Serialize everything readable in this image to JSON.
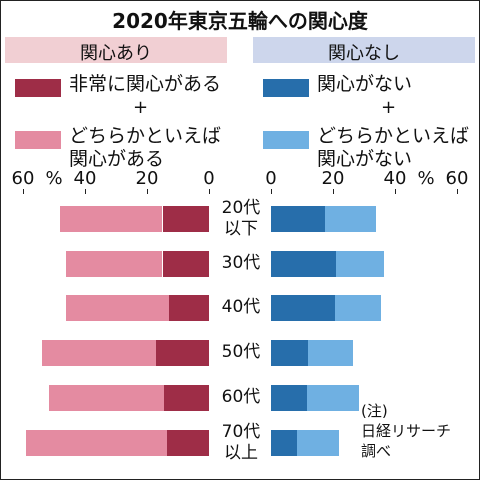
{
  "chart_data": {
    "type": "diverging_bar",
    "title": "2020年東京五輪への関心度",
    "groups": [
      {
        "title": "関心あり",
        "side": "left",
        "color": "#f1cfd3"
      },
      {
        "title": "関心なし",
        "side": "right",
        "color": "#cdd6ec"
      }
    ],
    "legend_joiner": "+",
    "categories": [
      "20代\n以下",
      "30代",
      "40代",
      "50代",
      "60代",
      "70代\n以上"
    ],
    "series": [
      {
        "name": "非常に関心がある",
        "side": "left",
        "color": "#9e2d47",
        "values": [
          15,
          15,
          13,
          17,
          14.5,
          13.5
        ]
      },
      {
        "name": "どちらかといえば\n関心がある",
        "side": "left",
        "color": "#e48ba1",
        "values": [
          33,
          31,
          33,
          37,
          37,
          45.5
        ]
      },
      {
        "name": "関心がない",
        "side": "right",
        "color": "#276eab",
        "values": [
          17.5,
          21,
          20.5,
          12,
          11.5,
          8.5
        ]
      },
      {
        "name": "どちらかといえば\n関心がない",
        "side": "right",
        "color": "#6fb0e2",
        "values": [
          16.5,
          15.5,
          15,
          14.5,
          17,
          13.5
        ]
      }
    ],
    "xlim": [
      0,
      60
    ],
    "xticks": [
      0,
      20,
      40,
      60
    ],
    "xunit": "%",
    "note": "(注)\n日経リサーチ\n調べ"
  }
}
